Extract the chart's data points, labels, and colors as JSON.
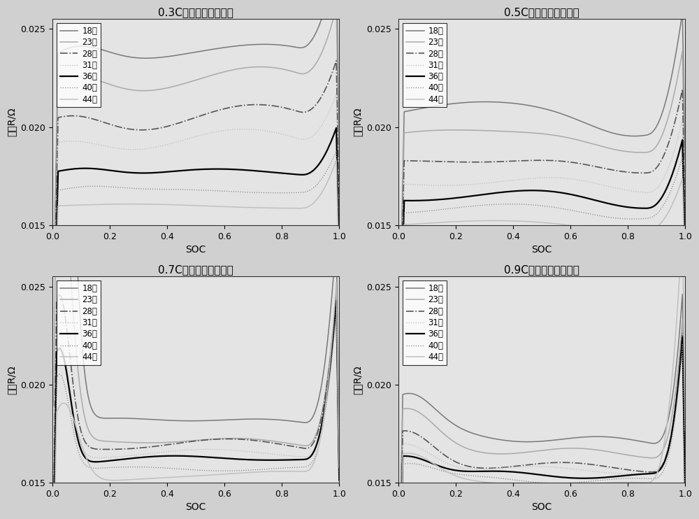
{
  "titles": [
    "0.3C电流直流内阻曲线",
    "0.5C电流直流内阻曲线",
    "0.7C电流直流内阻曲线",
    "0.9C电流直流内阻曲线"
  ],
  "ylabel": "内阻R/Ω",
  "xlabel": "SOC",
  "ylim": [
    0.015,
    0.0255
  ],
  "xlim": [
    0,
    1
  ],
  "yticks": [
    0.015,
    0.02,
    0.025
  ],
  "xticks": [
    0,
    0.2,
    0.4,
    0.6,
    0.8,
    1.0
  ],
  "legend_labels": [
    "18度",
    "23度",
    "28度",
    "31度",
    "36度",
    "40度",
    "44度"
  ],
  "colors": [
    "#787878",
    "#aaaaaa",
    "#555555",
    "#bbbbbb",
    "#000000",
    "#888888",
    "#c0c0c0"
  ],
  "styles": [
    "-",
    "-",
    "-.",
    ":",
    "-",
    ":",
    "-"
  ],
  "widths": [
    1.1,
    1.1,
    1.2,
    0.9,
    1.6,
    0.9,
    1.1
  ],
  "fig_fc": "#d0d0d0",
  "ax_fc": "#e4e4e4"
}
